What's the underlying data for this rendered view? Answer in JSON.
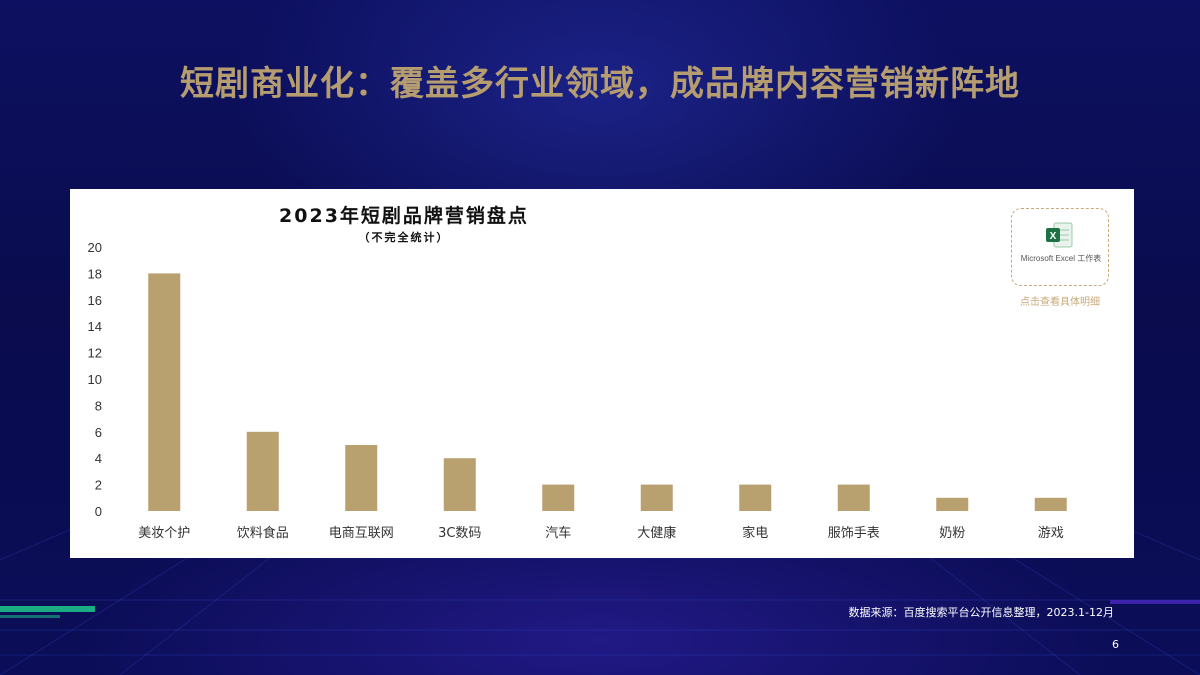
{
  "slide": {
    "title": "短剧商业化：覆盖多行业领域，成品牌内容营销新阵地",
    "source": "数据来源：百度搜索平台公开信息整理，2023.1-12月",
    "page_number": "6"
  },
  "attachment": {
    "label": "Microsoft Excel 工作表",
    "link_text": "点击查看具体明细",
    "icon": "excel-icon"
  },
  "colors": {
    "title": "#b59d70",
    "bar": "#b9a06f",
    "background": "#0b0d52",
    "accent_line": "#1fd48f"
  },
  "chart_data": {
    "type": "bar",
    "title": "2023年短剧品牌营销盘点",
    "subtitle": "（不完全统计）",
    "categories": [
      "美妆个护",
      "饮料食品",
      "电商互联网",
      "3C数码",
      "汽车",
      "大健康",
      "家电",
      "服饰手表",
      "奶粉",
      "游戏"
    ],
    "values": [
      18,
      6,
      5,
      4,
      2,
      2,
      2,
      2,
      1,
      1
    ],
    "ylim": [
      0,
      20
    ],
    "yticks": [
      0,
      2,
      4,
      6,
      8,
      10,
      12,
      14,
      16,
      18,
      20
    ],
    "grid": false,
    "xlabel": "",
    "ylabel": ""
  }
}
